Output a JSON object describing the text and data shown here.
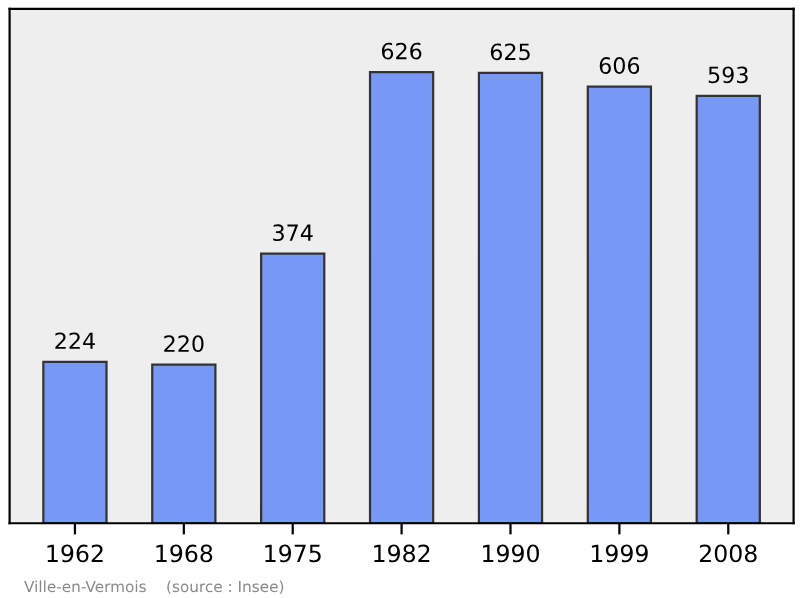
{
  "chart_data": {
    "type": "bar",
    "categories": [
      "1962",
      "1968",
      "1975",
      "1982",
      "1990",
      "1999",
      "2008"
    ],
    "values": [
      224,
      220,
      374,
      626,
      625,
      606,
      593
    ],
    "color": "#7799f5",
    "data_labels": true,
    "tick_labels": "x",
    "grid": false,
    "annotations": [
      "Ville-en-Vermois    (source : Insee)"
    ]
  }
}
